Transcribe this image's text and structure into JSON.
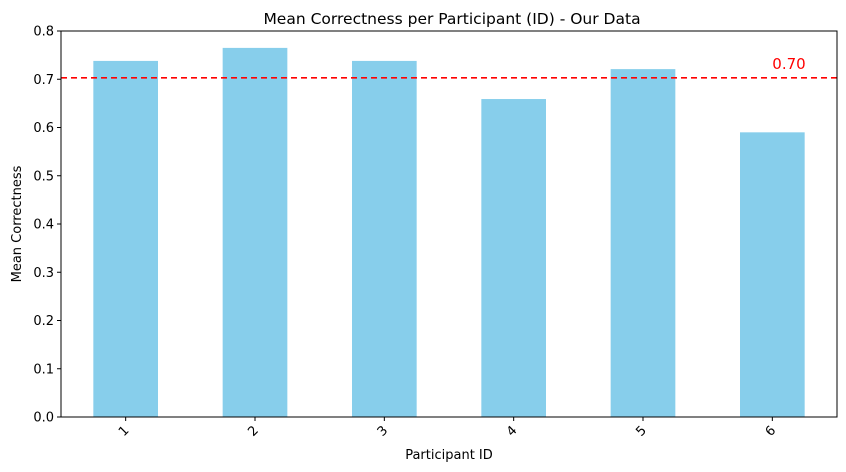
{
  "chart_data": {
    "type": "bar",
    "title": "Mean Correctness per Participant (ID) - Our Data",
    "xlabel": "Participant ID",
    "ylabel": "Mean Correctness",
    "categories": [
      "1",
      "2",
      "3",
      "4",
      "5",
      "6"
    ],
    "values": [
      0.738,
      0.765,
      0.738,
      0.659,
      0.721,
      0.59
    ],
    "ylim": [
      0,
      0.8
    ],
    "yticks": [
      "0.0",
      "0.1",
      "0.2",
      "0.3",
      "0.4",
      "0.5",
      "0.6",
      "0.7",
      "0.8"
    ],
    "bar_color": "#87ceeb",
    "reference_line": {
      "value": 0.703,
      "label": "0.70",
      "color": "#ff0000",
      "style": "dashed"
    },
    "grid": false,
    "xtick_rotation": 45
  }
}
